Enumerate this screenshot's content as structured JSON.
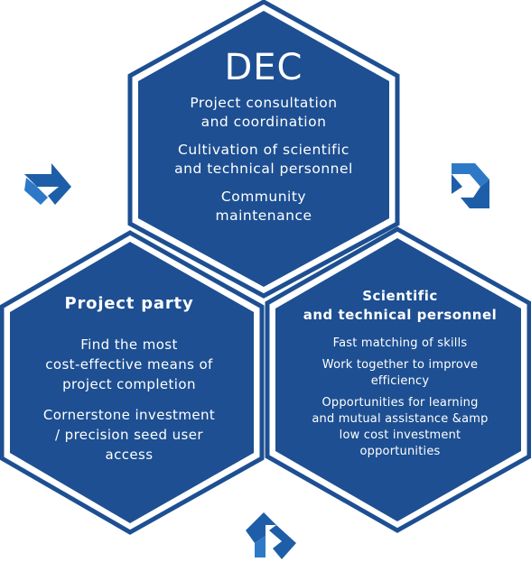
{
  "colors": {
    "hex_fill": "#1d4f92",
    "hex_border": "#1d4f92",
    "accent_light": "#2e79c7"
  },
  "dec": {
    "title": "DEC",
    "items": [
      "Project consultation\nand coordination",
      "Cultivation of scientific\nand technical personnel",
      "Community\nmaintenance"
    ]
  },
  "project_party": {
    "title": "Project party",
    "items": [
      "Find the most\ncost-effective means of\nproject completion",
      "Cornerstone investment\n/ precision seed user\naccess"
    ]
  },
  "scientific_personnel": {
    "title": "Scientific\nand technical personnel",
    "items": [
      "Fast matching of skills",
      "Work together to improve\nefficiency",
      "Opportunities for learning\nand mutual assistance &amp\nlow cost investment\nopportunities"
    ]
  },
  "icons": [
    "cycle-arrow-icon-left",
    "cycle-arrow-icon-right",
    "cycle-arrow-icon-bottom"
  ]
}
